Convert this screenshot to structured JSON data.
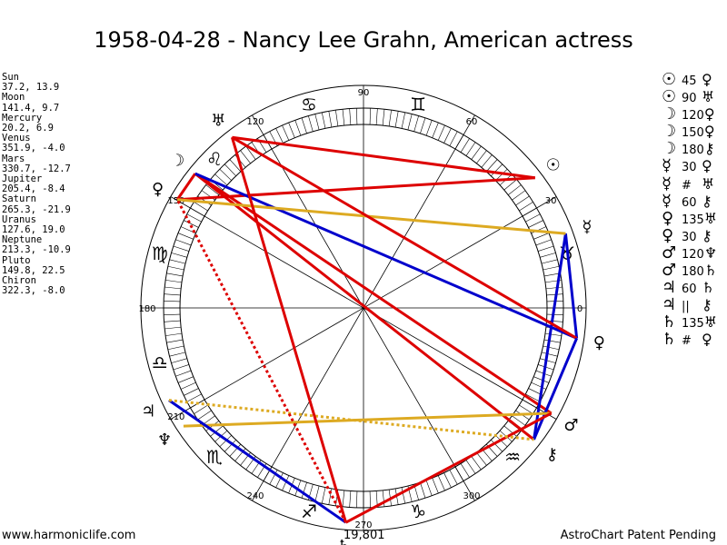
{
  "title": "1958-04-28 - Nancy Lee Grahn, American actress",
  "planets_text": [
    {
      "name": "Sun",
      "coords": "37.2, 13.9"
    },
    {
      "name": "Moon",
      "coords": "141.4, 9.7"
    },
    {
      "name": "Mercury",
      "coords": "20.2, 6.9"
    },
    {
      "name": "Venus",
      "coords": "351.9, -4.0"
    },
    {
      "name": "Mars",
      "coords": "330.7, -12.7"
    },
    {
      "name": "Jupiter",
      "coords": "205.4, -8.4"
    },
    {
      "name": "Saturn",
      "coords": "265.3, -21.9"
    },
    {
      "name": "Uranus",
      "coords": "127.6, 19.0"
    },
    {
      "name": "Neptune",
      "coords": "213.3, -10.9"
    },
    {
      "name": "Pluto",
      "coords": "149.8, 22.5"
    },
    {
      "name": "Chiron",
      "coords": "322.3, -8.0"
    }
  ],
  "aspects_list": [
    {
      "p1": "☉",
      "angle": "45",
      "p2": "♀"
    },
    {
      "p1": "☉",
      "angle": "90",
      "p2": "♅"
    },
    {
      "p1": "☽",
      "angle": "120",
      "p2": "♀"
    },
    {
      "p1": "☽",
      "angle": "150",
      "p2": "♀"
    },
    {
      "p1": "☽",
      "angle": "180",
      "p2": "⚷"
    },
    {
      "p1": "☿",
      "angle": "30",
      "p2": "♀"
    },
    {
      "p1": "☿",
      "angle": "#",
      "p2": "♅"
    },
    {
      "p1": "☿",
      "angle": "60",
      "p2": "⚷"
    },
    {
      "p1": "♀",
      "angle": "135",
      "p2": "♅"
    },
    {
      "p1": "♀",
      "angle": "30",
      "p2": "⚷"
    },
    {
      "p1": "♂",
      "angle": "120",
      "p2": "♆"
    },
    {
      "p1": "♂",
      "angle": "180",
      "p2": "♄"
    },
    {
      "p1": "♃",
      "angle": "60",
      "p2": "♄"
    },
    {
      "p1": "♃",
      "angle": "||",
      "p2": "⚷"
    },
    {
      "p1": "♄",
      "angle": "135",
      "p2": "♅"
    },
    {
      "p1": "♄",
      "angle": "#",
      "p2": "♀"
    }
  ],
  "wheel": {
    "degree_labels": [
      {
        "deg": 0,
        "label": "0"
      },
      {
        "deg": 30,
        "label": "30"
      },
      {
        "deg": 60,
        "label": "60"
      },
      {
        "deg": 90,
        "label": "90"
      },
      {
        "deg": 120,
        "label": "120"
      },
      {
        "deg": 150,
        "label": "150"
      },
      {
        "deg": 180,
        "label": "180"
      },
      {
        "deg": 210,
        "label": "210"
      },
      {
        "deg": 240,
        "label": "240"
      },
      {
        "deg": 270,
        "label": "270"
      },
      {
        "deg": 300,
        "label": "300"
      }
    ],
    "signs": [
      {
        "deg": 15,
        "glyph": "♉",
        "label": "Taurus"
      },
      {
        "deg": 75,
        "glyph": "♊",
        "label": "Gemini"
      },
      {
        "deg": 105,
        "glyph": "♋",
        "label": "Cancer"
      },
      {
        "deg": 135,
        "glyph": "♌",
        "label": "Leo"
      },
      {
        "deg": 165,
        "glyph": "♍",
        "label": "Virgo"
      },
      {
        "deg": 195,
        "glyph": "♎",
        "label": "Libra"
      },
      {
        "deg": 225,
        "glyph": "♏",
        "label": "Scorpio"
      },
      {
        "deg": 255,
        "glyph": "♐",
        "label": "Sagittarius"
      },
      {
        "deg": 285,
        "glyph": "♑",
        "label": "Capricorn"
      },
      {
        "deg": 315,
        "glyph": "♒",
        "label": "Aquarius"
      }
    ],
    "planets": [
      {
        "id": "sun",
        "glyph": "☉",
        "lon": 37.2,
        "lat": 13.9
      },
      {
        "id": "moon",
        "glyph": "☽",
        "lon": 141.4,
        "lat": 9.7
      },
      {
        "id": "mercury",
        "glyph": "☿",
        "lon": 20.2,
        "lat": 6.9
      },
      {
        "id": "venus",
        "glyph": "♀",
        "lon": 351.9,
        "lat": -4.0
      },
      {
        "id": "mars",
        "glyph": "♂",
        "lon": 330.7,
        "lat": -12.7
      },
      {
        "id": "jupiter",
        "glyph": "♃",
        "lon": 205.4,
        "lat": -8.4
      },
      {
        "id": "saturn",
        "glyph": "♄",
        "lon": 265.3,
        "lat": -21.9
      },
      {
        "id": "uranus",
        "glyph": "♅",
        "lon": 127.6,
        "lat": 19.0
      },
      {
        "id": "neptune",
        "glyph": "♆",
        "lon": 213.3,
        "lat": -10.9
      },
      {
        "id": "pluto",
        "glyph": "♀",
        "lon": 149.8,
        "lat": 22.5
      },
      {
        "id": "chiron",
        "glyph": "⚷",
        "lon": 322.3,
        "lat": -8.0
      }
    ],
    "aspect_lines": [
      {
        "a": "sun",
        "b": "pluto",
        "color": "#dd0000",
        "style": "solid"
      },
      {
        "a": "sun",
        "b": "uranus",
        "color": "#dd0000",
        "style": "solid"
      },
      {
        "a": "moon",
        "b": "pluto",
        "color": "#dd0000",
        "style": "solid"
      },
      {
        "a": "moon",
        "b": "mars",
        "color": "#dd0000",
        "style": "solid"
      },
      {
        "a": "moon",
        "b": "chiron",
        "color": "#dd0000",
        "style": "solid"
      },
      {
        "a": "moon",
        "b": "venus",
        "color": "#0000cc",
        "style": "solid"
      },
      {
        "a": "mercury",
        "b": "venus",
        "color": "#0000cc",
        "style": "solid"
      },
      {
        "a": "mercury",
        "b": "chiron",
        "color": "#0000cc",
        "style": "solid"
      },
      {
        "a": "mercury",
        "b": "pluto",
        "color": "#ddaa22",
        "style": "solid"
      },
      {
        "a": "venus",
        "b": "uranus",
        "color": "#dd0000",
        "style": "solid"
      },
      {
        "a": "venus",
        "b": "chiron",
        "color": "#0000cc",
        "style": "solid"
      },
      {
        "a": "mars",
        "b": "neptune",
        "color": "#ddaa22",
        "style": "solid"
      },
      {
        "a": "mars",
        "b": "saturn",
        "color": "#dd0000",
        "style": "solid"
      },
      {
        "a": "jupiter",
        "b": "saturn",
        "color": "#0000cc",
        "style": "solid"
      },
      {
        "a": "jupiter",
        "b": "chiron",
        "color": "#ddaa22",
        "style": "dotted"
      },
      {
        "a": "saturn",
        "b": "uranus",
        "color": "#dd0000",
        "style": "solid"
      },
      {
        "a": "saturn",
        "b": "pluto",
        "color": "#dd0000",
        "style": "dotted"
      }
    ]
  },
  "footer": {
    "left": "www.harmoniclife.com",
    "middle": "19,801",
    "right": "AstroChart Patent Pending"
  }
}
